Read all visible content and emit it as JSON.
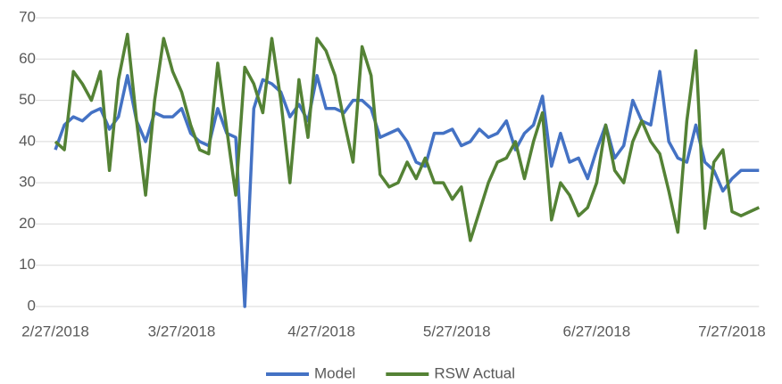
{
  "chart_data": {
    "type": "line",
    "x": [
      "2/27/2018",
      "3/1/2018",
      "3/3/2018",
      "3/5/2018",
      "3/7/2018",
      "3/9/2018",
      "3/11/2018",
      "3/13/2018",
      "3/15/2018",
      "3/17/2018",
      "3/19/2018",
      "3/21/2018",
      "3/23/2018",
      "3/25/2018",
      "3/27/2018",
      "3/29/2018",
      "3/31/2018",
      "4/2/2018",
      "4/4/2018",
      "4/6/2018",
      "4/8/2018",
      "4/10/2018",
      "4/12/2018",
      "4/14/2018",
      "4/16/2018",
      "4/18/2018",
      "4/20/2018",
      "4/22/2018",
      "4/24/2018",
      "4/26/2018",
      "4/28/2018",
      "4/30/2018",
      "5/2/2018",
      "5/4/2018",
      "5/6/2018",
      "5/8/2018",
      "5/10/2018",
      "5/12/2018",
      "5/14/2018",
      "5/16/2018",
      "5/18/2018",
      "5/20/2018",
      "5/22/2018",
      "5/24/2018",
      "5/26/2018",
      "5/28/2018",
      "5/30/2018",
      "6/1/2018",
      "6/3/2018",
      "6/5/2018",
      "6/7/2018",
      "6/9/2018",
      "6/11/2018",
      "6/13/2018",
      "6/15/2018",
      "6/17/2018",
      "6/19/2018",
      "6/21/2018",
      "6/23/2018",
      "6/25/2018",
      "6/27/2018",
      "6/29/2018",
      "7/1/2018",
      "7/3/2018",
      "7/5/2018",
      "7/7/2018",
      "7/9/2018",
      "7/11/2018",
      "7/13/2018",
      "7/15/2018",
      "7/17/2018",
      "7/19/2018",
      "7/21/2018",
      "7/23/2018",
      "7/25/2018",
      "7/27/2018",
      "7/29/2018",
      "7/31/2018",
      "8/2/2018"
    ],
    "series": [
      {
        "name": "Model",
        "color": "#4472c4",
        "values": [
          38,
          44,
          46,
          45,
          47,
          48,
          43,
          46,
          56,
          45,
          40,
          47,
          46,
          46,
          48,
          42,
          40,
          39,
          48,
          42,
          41,
          0,
          48,
          55,
          54,
          52,
          46,
          49,
          45,
          56,
          48,
          48,
          47,
          50,
          50,
          48,
          41,
          42,
          43,
          40,
          35,
          34,
          42,
          42,
          43,
          39,
          40,
          43,
          41,
          42,
          45,
          38,
          42,
          44,
          51,
          34,
          42,
          35,
          36,
          31,
          38,
          44,
          36,
          39,
          50,
          45,
          44,
          57,
          40,
          36,
          35,
          44,
          35,
          33,
          28,
          31,
          33,
          33,
          33
        ]
      },
      {
        "name": "RSW Actual",
        "color": "#548235",
        "values": [
          40,
          38,
          57,
          54,
          50,
          57,
          33,
          55,
          66,
          45,
          27,
          50,
          65,
          57,
          52,
          44,
          38,
          37,
          59,
          43,
          27,
          58,
          54,
          47,
          65,
          50,
          30,
          55,
          41,
          65,
          62,
          56,
          45,
          35,
          63,
          56,
          32,
          29,
          30,
          35,
          31,
          36,
          30,
          30,
          26,
          29,
          16,
          23,
          30,
          35,
          36,
          40,
          31,
          40,
          47,
          21,
          30,
          27,
          22,
          24,
          30,
          44,
          33,
          30,
          40,
          45,
          40,
          37,
          28,
          18,
          45,
          62,
          19,
          35,
          38,
          23,
          22,
          23,
          24
        ]
      }
    ],
    "xlim": [
      "2/27/2018",
      "8/2/2018"
    ],
    "xticks": [
      "2/27/2018",
      "3/27/2018",
      "4/27/2018",
      "5/27/2018",
      "6/27/2018",
      "7/27/2018"
    ],
    "ylim": [
      0,
      70
    ],
    "yticks": [
      0,
      10,
      20,
      30,
      40,
      50,
      60,
      70
    ],
    "grid": true,
    "legend": "bottom"
  }
}
